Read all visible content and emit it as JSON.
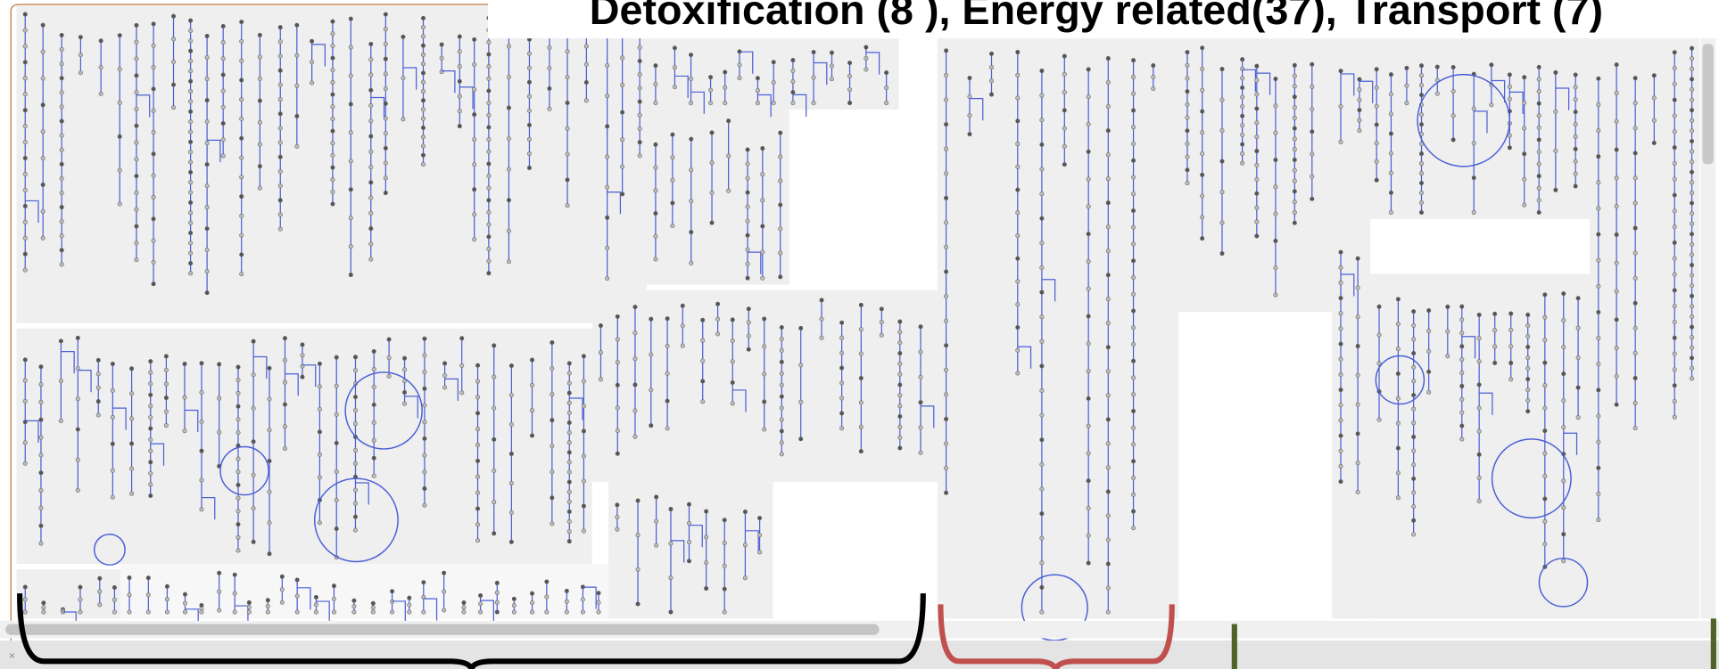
{
  "title": "Detoxification (8 ), Energy related(37), Transport (7)"
}
